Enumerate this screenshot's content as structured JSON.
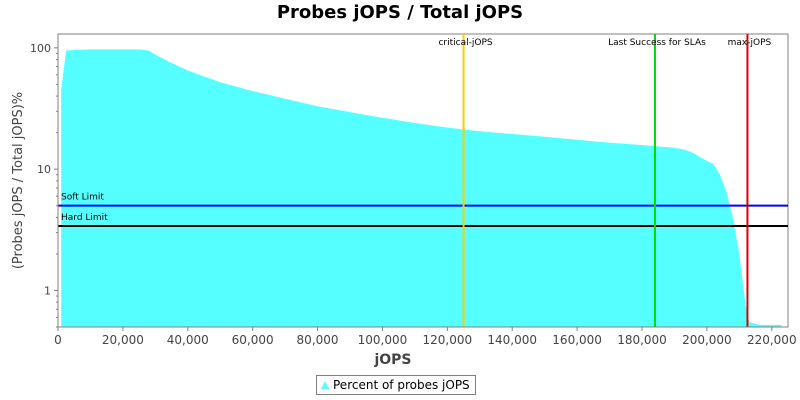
{
  "chart_data": {
    "type": "area",
    "title": "Probes jOPS / Total jOPS",
    "xlabel": "jOPS",
    "ylabel": "(Probes jOPS / Total jOPS)%",
    "xlim": [
      0,
      225000
    ],
    "ylim": [
      0.5,
      130
    ],
    "yscale": "log",
    "grid": false,
    "legend_position": "bottom",
    "x_ticks": [
      0,
      20000,
      40000,
      60000,
      80000,
      100000,
      120000,
      140000,
      160000,
      180000,
      200000,
      220000
    ],
    "x_tick_labels": [
      "0",
      "20,000",
      "40,000",
      "60,000",
      "80,000",
      "100,000",
      "120,000",
      "140,000",
      "160,000",
      "180,000",
      "200,000",
      "220,000"
    ],
    "y_ticks": [
      1,
      10,
      100
    ],
    "y_tick_labels": [
      "1",
      "10",
      "100"
    ],
    "series": [
      {
        "name": "Percent of probes jOPS",
        "color": "#55ffff",
        "x": [
          1000,
          2500,
          5000,
          10000,
          15000,
          20000,
          25000,
          28000,
          30000,
          35000,
          40000,
          50000,
          60000,
          70000,
          80000,
          90000,
          100000,
          110000,
          120000,
          130000,
          140000,
          150000,
          160000,
          170000,
          180000,
          190000,
          193000,
          196000,
          198000,
          200000,
          202000,
          204000,
          206000,
          208000,
          210000,
          211000,
          212000,
          213000,
          216000,
          223000
        ],
        "y": [
          45,
          95,
          96,
          97,
          97,
          97,
          97,
          95,
          88,
          75,
          65,
          52,
          44,
          38,
          33,
          29.5,
          26.5,
          24,
          22,
          20.5,
          19.5,
          18.5,
          17.5,
          16.5,
          15.8,
          15,
          14.5,
          13.5,
          12.5,
          11.7,
          11,
          9,
          6.5,
          4,
          2,
          1.2,
          0.75,
          0.55,
          0.52,
          0.52
        ]
      }
    ],
    "vertical_markers": [
      {
        "label": "critical-jOPS",
        "x": 125000,
        "color": "#ffcc00"
      },
      {
        "label": "Last Success for SLAs",
        "x": 184000,
        "color": "#00dd00"
      },
      {
        "label": "max-jOPS",
        "x": 212500,
        "color": "#dd0000"
      }
    ],
    "horizontal_markers": [
      {
        "label": "Soft Limit",
        "y": 5,
        "color": "#0000ee"
      },
      {
        "label": "Hard Limit",
        "y": 3.4,
        "color": "#000000"
      }
    ]
  }
}
